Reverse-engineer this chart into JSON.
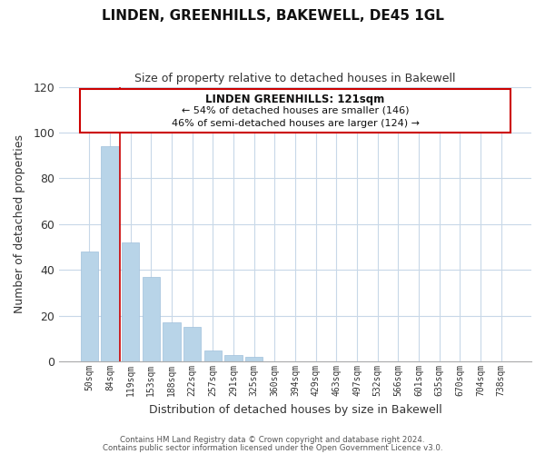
{
  "title": "LINDEN, GREENHILLS, BAKEWELL, DE45 1GL",
  "subtitle": "Size of property relative to detached houses in Bakewell",
  "xlabel": "Distribution of detached houses by size in Bakewell",
  "ylabel": "Number of detached properties",
  "bar_labels": [
    "50sqm",
    "84sqm",
    "119sqm",
    "153sqm",
    "188sqm",
    "222sqm",
    "257sqm",
    "291sqm",
    "325sqm",
    "360sqm",
    "394sqm",
    "429sqm",
    "463sqm",
    "497sqm",
    "532sqm",
    "566sqm",
    "601sqm",
    "635sqm",
    "670sqm",
    "704sqm",
    "738sqm"
  ],
  "bar_values": [
    48,
    94,
    52,
    37,
    17,
    15,
    5,
    3,
    2,
    0,
    0,
    0,
    0,
    0,
    0,
    0,
    0,
    0,
    0,
    0,
    0
  ],
  "bar_color": "#b8d4e8",
  "bar_edge_color": "#a0c0dc",
  "highlight_index": 2,
  "highlight_color": "#cc0000",
  "ylim": [
    0,
    120
  ],
  "yticks": [
    0,
    20,
    40,
    60,
    80,
    100,
    120
  ],
  "annotation_title": "LINDEN GREENHILLS: 121sqm",
  "annotation_line1": "← 54% of detached houses are smaller (146)",
  "annotation_line2": "46% of semi-detached houses are larger (124) →",
  "annotation_box_color": "#ffffff",
  "annotation_box_edge": "#cc0000",
  "footer_line1": "Contains HM Land Registry data © Crown copyright and database right 2024.",
  "footer_line2": "Contains public sector information licensed under the Open Government Licence v3.0.",
  "background_color": "#ffffff",
  "grid_color": "#c8d8e8"
}
